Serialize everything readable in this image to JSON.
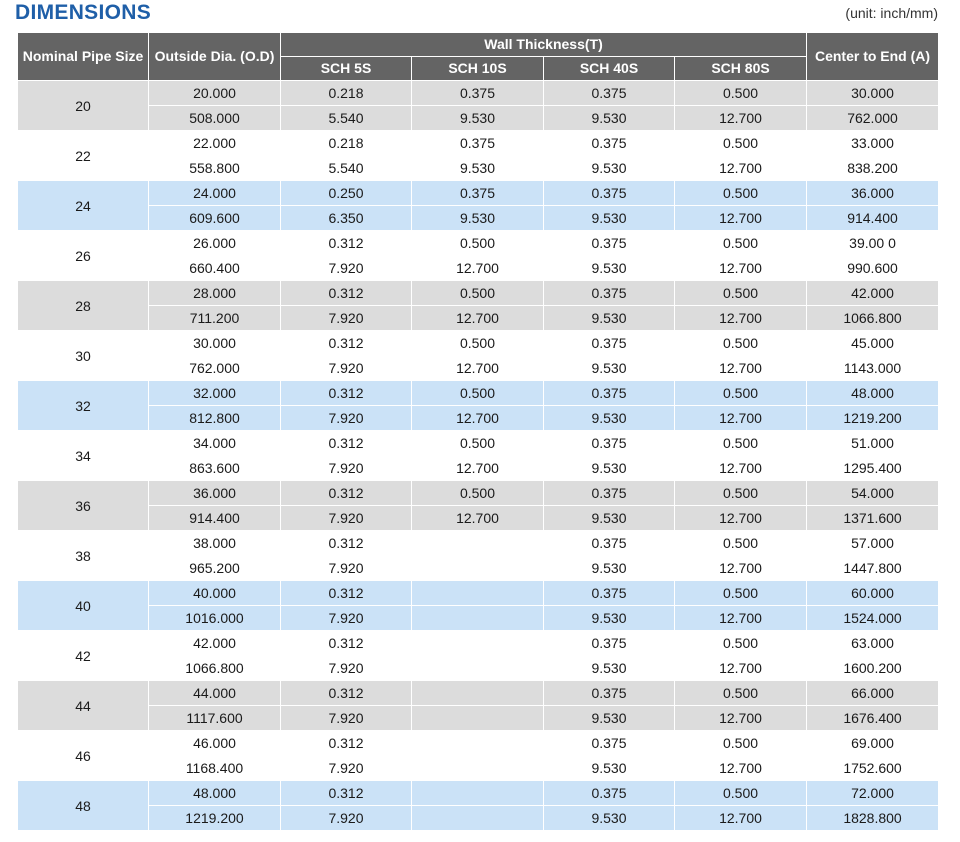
{
  "header": {
    "title": "DIMENSIONS",
    "unit_note": "(unit: inch/mm)"
  },
  "table": {
    "columns": {
      "nominal": "Nominal Pipe Size",
      "outside": "Outside Dia. (O.D)",
      "wall": "Wall Thickness(T)",
      "sch5s": "SCH 5S",
      "sch10s": "SCH 10S",
      "sch40s": "SCH 40S",
      "sch80s": "SCH 80S",
      "center": "Center to End (A)"
    },
    "row_colors": {
      "gray": "#dcdcdc",
      "blue": "#cbe2f7",
      "white": "#ffffff"
    },
    "rows": [
      {
        "size": "20",
        "shade": "gray",
        "inch": [
          "20.000",
          "0.218",
          "0.375",
          "0.375",
          "0.500",
          "30.000"
        ],
        "mm": [
          "508.000",
          "5.540",
          "9.530",
          "9.530",
          "12.700",
          "762.000"
        ]
      },
      {
        "size": "22",
        "shade": "white",
        "inch": [
          "22.000",
          "0.218",
          "0.375",
          "0.375",
          "0.500",
          "33.000"
        ],
        "mm": [
          "558.800",
          "5.540",
          "9.530",
          "9.530",
          "12.700",
          "838.200"
        ]
      },
      {
        "size": "24",
        "shade": "blue",
        "inch": [
          "24.000",
          "0.250",
          "0.375",
          "0.375",
          "0.500",
          "36.000"
        ],
        "mm": [
          "609.600",
          "6.350",
          "9.530",
          "9.530",
          "12.700",
          "914.400"
        ]
      },
      {
        "size": "26",
        "shade": "white",
        "inch": [
          "26.000",
          "0.312",
          "0.500",
          "0.375",
          "0.500",
          "39.00 0"
        ],
        "mm": [
          "660.400",
          "7.920",
          "12.700",
          "9.530",
          "12.700",
          "990.600"
        ]
      },
      {
        "size": "28",
        "shade": "gray",
        "inch": [
          "28.000",
          "0.312",
          "0.500",
          "0.375",
          "0.500",
          "42.000"
        ],
        "mm": [
          "711.200",
          "7.920",
          "12.700",
          "9.530",
          "12.700",
          "1066.800"
        ]
      },
      {
        "size": "30",
        "shade": "white",
        "inch": [
          "30.000",
          "0.312",
          "0.500",
          "0.375",
          "0.500",
          "45.000"
        ],
        "mm": [
          "762.000",
          "7.920",
          "12.700",
          "9.530",
          "12.700",
          "1143.000"
        ]
      },
      {
        "size": "32",
        "shade": "blue",
        "inch": [
          "32.000",
          "0.312",
          "0.500",
          "0.375",
          "0.500",
          "48.000"
        ],
        "mm": [
          "812.800",
          "7.920",
          "12.700",
          "9.530",
          "12.700",
          "1219.200"
        ]
      },
      {
        "size": "34",
        "shade": "white",
        "inch": [
          "34.000",
          "0.312",
          "0.500",
          "0.375",
          "0.500",
          "51.000"
        ],
        "mm": [
          "863.600",
          "7.920",
          "12.700",
          "9.530",
          "12.700",
          "1295.400"
        ]
      },
      {
        "size": "36",
        "shade": "gray",
        "inch": [
          "36.000",
          "0.312",
          "0.500",
          "0.375",
          "0.500",
          "54.000"
        ],
        "mm": [
          "914.400",
          "7.920",
          "12.700",
          "9.530",
          "12.700",
          "1371.600"
        ]
      },
      {
        "size": "38",
        "shade": "white",
        "inch": [
          "38.000",
          "0.312",
          "",
          "0.375",
          "0.500",
          "57.000"
        ],
        "mm": [
          "965.200",
          "7.920",
          "",
          "9.530",
          "12.700",
          "1447.800"
        ]
      },
      {
        "size": "40",
        "shade": "blue",
        "inch": [
          "40.000",
          "0.312",
          "",
          "0.375",
          "0.500",
          "60.000"
        ],
        "mm": [
          "1016.000",
          "7.920",
          "",
          "9.530",
          "12.700",
          "1524.000"
        ]
      },
      {
        "size": "42",
        "shade": "white",
        "inch": [
          "42.000",
          "0.312",
          "",
          "0.375",
          "0.500",
          "63.000"
        ],
        "mm": [
          "1066.800",
          "7.920",
          "",
          "9.530",
          "12.700",
          "1600.200"
        ]
      },
      {
        "size": "44",
        "shade": "gray",
        "inch": [
          "44.000",
          "0.312",
          "",
          "0.375",
          "0.500",
          "66.000"
        ],
        "mm": [
          "1117.600",
          "7.920",
          "",
          "9.530",
          "12.700",
          "1676.400"
        ]
      },
      {
        "size": "46",
        "shade": "white",
        "inch": [
          "46.000",
          "0.312",
          "",
          "0.375",
          "0.500",
          "69.000"
        ],
        "mm": [
          "1168.400",
          "7.920",
          "",
          "9.530",
          "12.700",
          "1752.600"
        ]
      },
      {
        "size": "48",
        "shade": "blue",
        "inch": [
          "48.000",
          "0.312",
          "",
          "0.375",
          "0.500",
          "72.000"
        ],
        "mm": [
          "1219.200",
          "7.920",
          "",
          "9.530",
          "12.700",
          "1828.800"
        ]
      }
    ]
  }
}
